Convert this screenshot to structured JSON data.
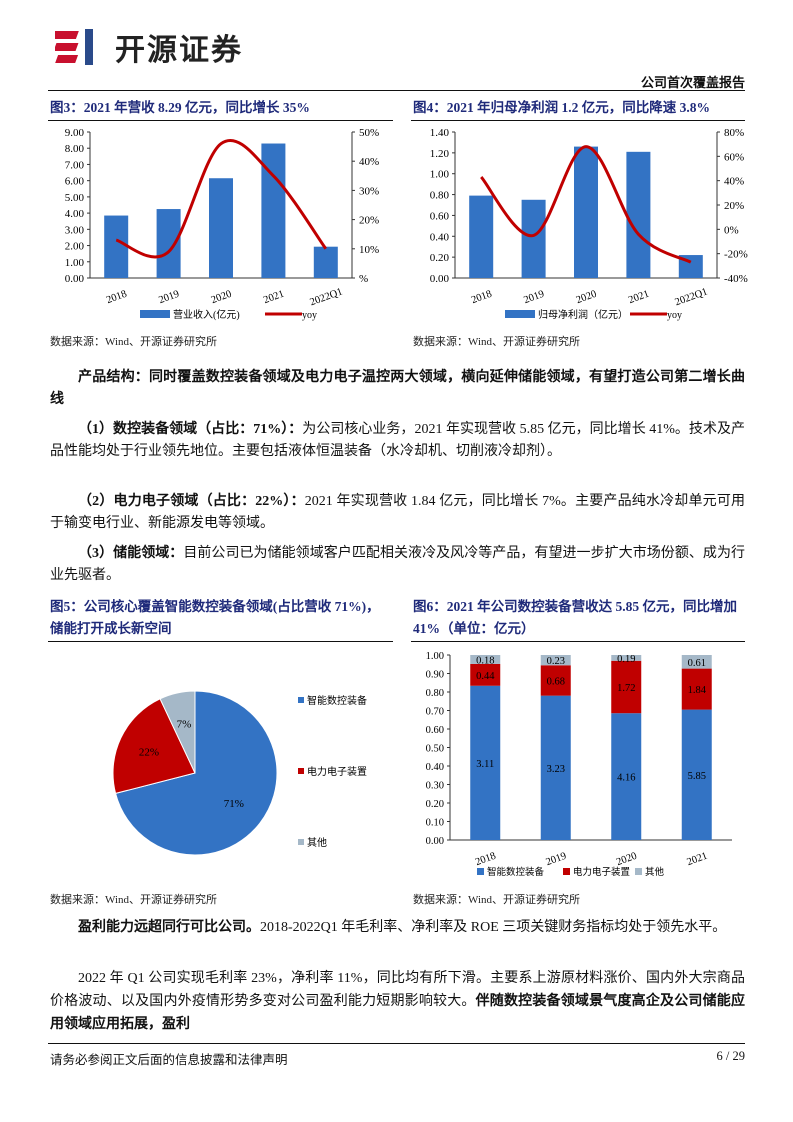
{
  "header": {
    "logo_text": "开源证券",
    "report_type": "公司首次覆盖报告"
  },
  "colors": {
    "blue": "#3373c4",
    "red": "#c00000",
    "gray": "#a5b8c8",
    "title": "#1f2a7a"
  },
  "fig3": {
    "title": "图3：2021 年营收 8.29 亿元，同比增长 35%",
    "source": "数据来源：Wind、开源证券研究所"
  },
  "fig4": {
    "title": "图4：2021 年归母净利润 1.2 亿元，同比降速 3.8%",
    "source": "数据来源：Wind、开源证券研究所"
  },
  "fig5": {
    "title_line1": "图5：公司核心覆盖智能数控装备领域(占比营收 71%)，",
    "title_line2": "储能打开成长新空间",
    "source": "数据来源：Wind、开源证券研究所"
  },
  "fig6": {
    "title_line1": "图6：2021 年公司数控装备营收达 5.85 亿元，同比增加",
    "title_line2": "41%（单位：亿元）",
    "source": "数据来源：Wind、开源证券研究所"
  },
  "chart_data": [
    {
      "type": "bar+line",
      "categories": [
        "2018",
        "2019",
        "2020",
        "2021",
        "2022Q1"
      ],
      "series": [
        {
          "name": "营业收入(亿元)",
          "type": "bar",
          "values": [
            3.85,
            4.25,
            6.15,
            8.29,
            1.93
          ]
        },
        {
          "name": "yoy",
          "type": "line",
          "axis": "right",
          "values": [
            13,
            9,
            46,
            35,
            10
          ]
        }
      ],
      "ylim": [
        0,
        9
      ],
      "yticks": [
        "0.00",
        "1.00",
        "2.00",
        "3.00",
        "4.00",
        "5.00",
        "6.00",
        "7.00",
        "8.00",
        "9.00"
      ],
      "y2lim": [
        0,
        50
      ],
      "y2ticks": [
        "%",
        "10%",
        "20%",
        "30%",
        "40%",
        "50%"
      ],
      "legend": "bottom"
    },
    {
      "type": "bar+line",
      "categories": [
        "2018",
        "2019",
        "2020",
        "2021",
        "2022Q1"
      ],
      "series": [
        {
          "name": "归母净利润（亿元）",
          "type": "bar",
          "values": [
            0.79,
            0.75,
            1.26,
            1.21,
            0.22
          ]
        },
        {
          "name": "yoy",
          "type": "line",
          "axis": "right",
          "values": [
            43,
            -5,
            68,
            -4,
            -27
          ]
        }
      ],
      "ylim": [
        0,
        1.4
      ],
      "yticks": [
        "0.00",
        "0.20",
        "0.40",
        "0.60",
        "0.80",
        "1.00",
        "1.20",
        "1.40"
      ],
      "y2lim": [
        -40,
        80
      ],
      "y2ticks": [
        "-40%",
        "-20%",
        "0%",
        "20%",
        "40%",
        "60%",
        "80%"
      ],
      "legend": "bottom"
    },
    {
      "type": "pie",
      "labels": [
        "智能数控装备",
        "电力电子装置",
        "其他"
      ],
      "values": [
        71,
        22,
        7
      ],
      "data_labels": [
        "71%",
        "22%",
        "7%"
      ],
      "legend": "right"
    },
    {
      "type": "stacked-bar-100",
      "categories": [
        "2018",
        "2019",
        "2020",
        "2021"
      ],
      "series": [
        {
          "name": "智能数控装备",
          "values": [
            3.11,
            3.23,
            4.16,
            5.85
          ],
          "labels": [
            "3.11",
            "3.23",
            "4.16",
            "5.85"
          ]
        },
        {
          "name": "电力电子装置",
          "values": [
            0.44,
            0.68,
            1.72,
            1.84
          ],
          "labels": [
            "0.44",
            "0.68",
            "1.72",
            "1.84"
          ]
        },
        {
          "name": "其他",
          "values": [
            0.18,
            0.23,
            0.19,
            0.61
          ],
          "labels": [
            "0.18",
            "0.23",
            "0.19",
            "0.61"
          ]
        }
      ],
      "ylim": [
        0,
        1
      ],
      "yticks": [
        "0.00",
        "0.10",
        "0.20",
        "0.30",
        "0.40",
        "0.50",
        "0.60",
        "0.70",
        "0.80",
        "0.90",
        "1.00"
      ],
      "legend": "bottom"
    }
  ],
  "body": {
    "p1": {
      "lead": "产品结构：同时覆盖数控装备领域及电力电子温控两大领域，横向延伸储能领域，有望打造公司第二增长曲线",
      "text": ""
    },
    "p2": {
      "lead": "（1）数控装备领域（占比：71%）：",
      "text": "为公司核心业务，2021 年实现营收 5.85 亿元，同比增长 41%。技术及产品性能均处于行业领先地位。主要包括液体恒温装备（水冷却机、切削液冷却剂）。"
    },
    "p3": {
      "lead": "（2）电力电子领域（占比：22%）：",
      "text": "2021 年实现营收 1.84 亿元，同比增长 7%。主要产品纯水冷却单元可用于输变电行业、新能源发电等领域。"
    },
    "p4": {
      "lead": "（3）储能领域：",
      "text": "目前公司已为储能领域客户匹配相关液冷及风冷等产品，有望进一步扩大市场份额、成为行业先驱者。"
    },
    "p5": {
      "lead": "盈利能力远超同行可比公司。",
      "text": "2018-2022Q1 年毛利率、净利率及 ROE 三项关键财务指标均处于领先水平。"
    },
    "p6": {
      "text": "2022 年 Q1 公司实现毛利率 23%，净利率 11%，同比均有所下滑。主要系上游原材料涨价、国内外大宗商品价格波动、以及国内外疫情形势多变对公司盈利能力短期影响较大。",
      "bold_tail": "伴随数控装备领域景气度高企及公司储能应用领域应用拓展，盈利"
    }
  },
  "footer": {
    "disclaimer": "请务必参阅正文后面的信息披露和法律声明",
    "page": "6 / 29"
  }
}
